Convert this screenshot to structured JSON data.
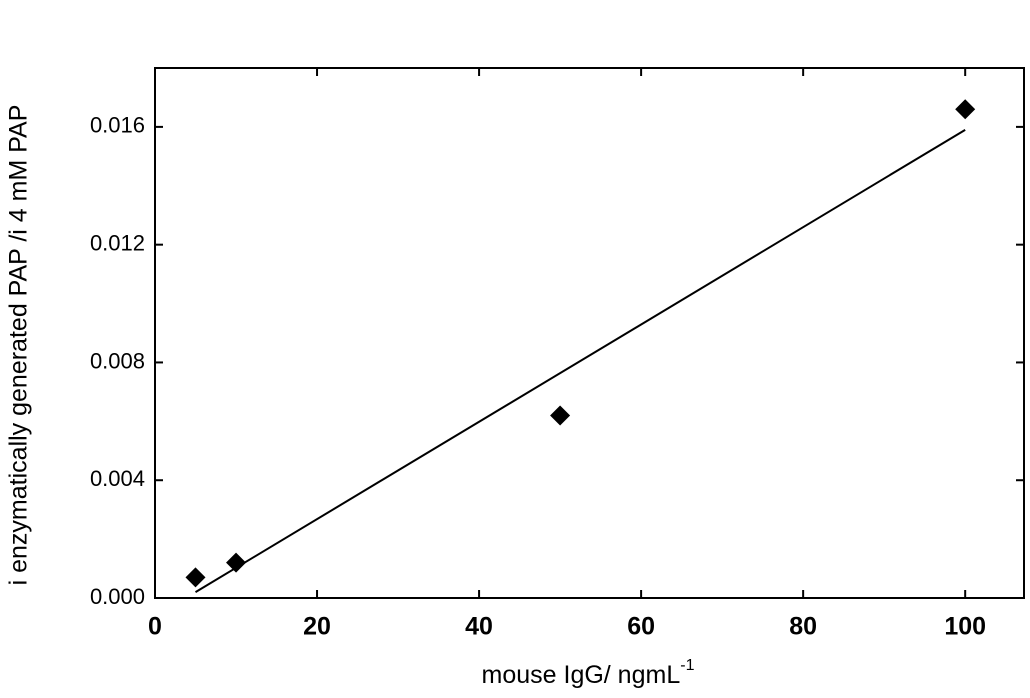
{
  "chart_data": {
    "type": "scatter",
    "xlabel": "mouse IgG/ ngmL",
    "xlabel_sup": "-1",
    "ylabel": "i enzymatically generated PAP /i 4 mM PAP",
    "xlim": [
      0,
      108
    ],
    "ylim": [
      0,
      0.018
    ],
    "xticks": [
      0,
      20,
      40,
      60,
      80,
      100
    ],
    "yticks": [
      {
        "value": 0,
        "label": "0.000"
      },
      0.004,
      0.008,
      0.012,
      0.016
    ],
    "series": [
      {
        "color": "#000000",
        "x": [
          5,
          10,
          50,
          100
        ],
        "values": [
          0.0007,
          0.0012,
          0.0062,
          0.0166
        ]
      }
    ],
    "fit_line": {
      "color": "#000000",
      "x": [
        5,
        100
      ],
      "values": [
        0.0002,
        0.0159
      ]
    }
  }
}
